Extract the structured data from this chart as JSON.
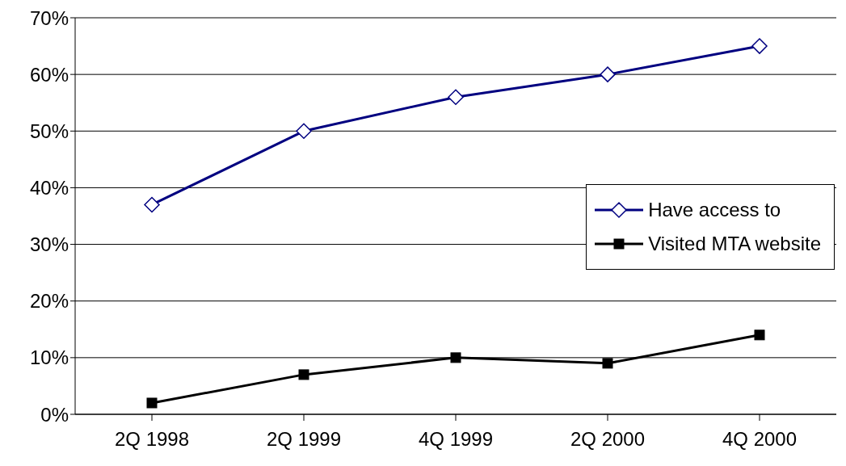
{
  "chart_data": {
    "type": "line",
    "categories": [
      "2Q 1998",
      "2Q 1999",
      "4Q 1999",
      "2Q 2000",
      "4Q 2000"
    ],
    "series": [
      {
        "name": "Have access to",
        "color": "#000080",
        "values": [
          37,
          50,
          56,
          60,
          65
        ],
        "marker": "diamond"
      },
      {
        "name": "Visited MTA website",
        "color": "#000000",
        "values": [
          2,
          7,
          10,
          9,
          14
        ],
        "marker": "square"
      }
    ],
    "ylim": [
      0,
      70
    ],
    "yticks": [
      {
        "value": 0,
        "label": "0%"
      },
      {
        "value": 10,
        "label": "10%"
      },
      {
        "value": 20,
        "label": "20%"
      },
      {
        "value": 30,
        "label": "30%"
      },
      {
        "value": 40,
        "label": "40%"
      },
      {
        "value": 50,
        "label": "50%"
      },
      {
        "value": 60,
        "label": "60%"
      },
      {
        "value": 70,
        "label": "70%"
      }
    ],
    "grid": "y",
    "legend": "right",
    "line_style": "solid"
  }
}
